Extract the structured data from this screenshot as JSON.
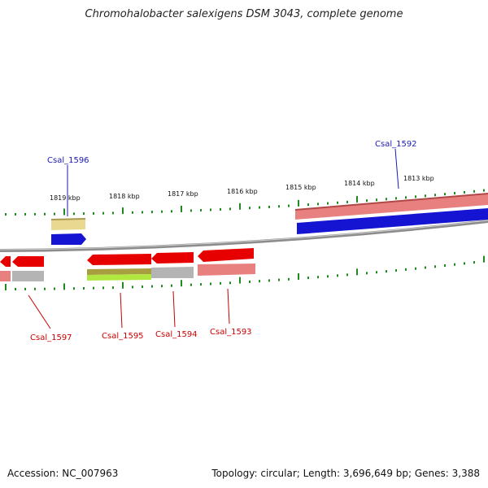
{
  "title": "Chromohalobacter salexigens DSM 3043, complete genome",
  "footer": {
    "accession": "Accession: NC_007963",
    "summary": "Topology: circular; Length: 3,696,649 bp; Genes: 3,388"
  },
  "colors": {
    "backbone": "#8c8c8c",
    "tick": "#1f8a1f",
    "cds_forward": "#1414d2",
    "cds_reverse": "#e60000",
    "gene_feature": "#e88080",
    "pseudo_gray": "#b4b4b4",
    "khaki": "#e8d890",
    "olive": "#a8a040",
    "lime": "#b0e840",
    "label_blue": "#1a1ab4",
    "label_red": "#c80000"
  },
  "ticks": [
    "1813 kbp",
    "1814 kbp",
    "1815 kbp",
    "1816 kbp",
    "1817 kbp",
    "1818 kbp",
    "1819 kbp"
  ],
  "labels": {
    "top": [
      "Csal_1596",
      "Csal_1592"
    ],
    "bottom": [
      "Csal_1597",
      "Csal_1595",
      "Csal_1594",
      "Csal_1593"
    ]
  }
}
